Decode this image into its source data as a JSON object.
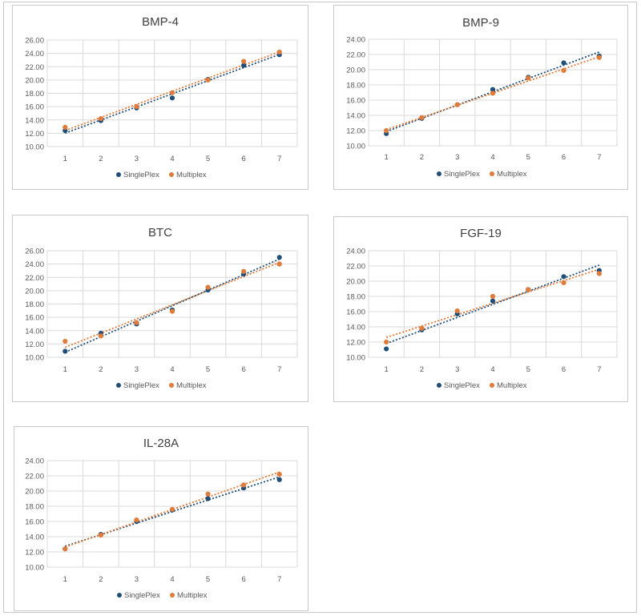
{
  "colors": {
    "singleplex": "#1f4e79",
    "multiplex": "#e07b39",
    "grid": "#d9d9d9"
  },
  "chart_data": [
    {
      "type": "scatter",
      "title": "BMP-4",
      "x": [
        1,
        2,
        3,
        4,
        5,
        6,
        7
      ],
      "ylim": [
        10,
        26
      ],
      "yticks": [
        "10.00",
        "12.00",
        "14.00",
        "16.00",
        "18.00",
        "20.00",
        "22.00",
        "24.00",
        "26.00"
      ],
      "xticks": [
        "1",
        "2",
        "3",
        "4",
        "5",
        "6",
        "7"
      ],
      "grid": true,
      "trendline": "linear, dotted",
      "legend_position": "bottom",
      "series": [
        {
          "name": "SinglePlex",
          "values": [
            12.4,
            13.9,
            15.8,
            17.3,
            20.1,
            22.2,
            23.8
          ]
        },
        {
          "name": "Multiplex",
          "values": [
            12.9,
            14.2,
            16.0,
            18.1,
            20.0,
            22.8,
            24.2
          ]
        }
      ]
    },
    {
      "type": "scatter",
      "title": "BMP-9",
      "x": [
        1,
        2,
        3,
        4,
        5,
        6,
        7
      ],
      "ylim": [
        10,
        24
      ],
      "yticks": [
        "10.00",
        "12.00",
        "14.00",
        "16.00",
        "18.00",
        "20.00",
        "22.00",
        "24.00"
      ],
      "xticks": [
        "1",
        "2",
        "3",
        "4",
        "5",
        "6",
        "7"
      ],
      "grid": true,
      "trendline": "linear, dotted",
      "legend_position": "bottom",
      "series": [
        {
          "name": "SinglePlex",
          "values": [
            11.6,
            13.6,
            15.4,
            17.4,
            19.0,
            20.9,
            21.8
          ]
        },
        {
          "name": "Multiplex",
          "values": [
            12.0,
            13.7,
            15.4,
            16.9,
            18.9,
            19.9,
            21.6
          ]
        }
      ]
    },
    {
      "type": "scatter",
      "title": "BTC",
      "x": [
        1,
        2,
        3,
        4,
        5,
        6,
        7
      ],
      "ylim": [
        10,
        26
      ],
      "yticks": [
        "10.00",
        "12.00",
        "14.00",
        "16.00",
        "18.00",
        "20.00",
        "22.00",
        "24.00",
        "26.00"
      ],
      "xticks": [
        "1",
        "2",
        "3",
        "4",
        "5",
        "6",
        "7"
      ],
      "grid": true,
      "trendline": "linear, dotted",
      "legend_position": "bottom",
      "series": [
        {
          "name": "SinglePlex",
          "values": [
            10.9,
            13.6,
            15.0,
            17.1,
            20.1,
            22.5,
            25.0
          ]
        },
        {
          "name": "Multiplex",
          "values": [
            12.4,
            13.2,
            15.2,
            16.9,
            20.5,
            22.9,
            24.0
          ]
        }
      ]
    },
    {
      "type": "scatter",
      "title": "FGF-19",
      "x": [
        1,
        2,
        3,
        4,
        5,
        6,
        7
      ],
      "ylim": [
        10,
        24
      ],
      "yticks": [
        "10.00",
        "12.00",
        "14.00",
        "16.00",
        "18.00",
        "20.00",
        "22.00",
        "24.00"
      ],
      "xticks": [
        "1",
        "2",
        "3",
        "4",
        "5",
        "6",
        "7"
      ],
      "grid": true,
      "trendline": "linear, dotted",
      "legend_position": "bottom",
      "series": [
        {
          "name": "SinglePlex",
          "values": [
            11.1,
            13.6,
            15.7,
            17.4,
            18.9,
            20.6,
            21.4
          ]
        },
        {
          "name": "Multiplex",
          "values": [
            12.0,
            13.8,
            16.1,
            18.0,
            18.9,
            19.8,
            21.0
          ]
        }
      ]
    },
    {
      "type": "scatter",
      "title": "IL-28A",
      "x": [
        1,
        2,
        3,
        4,
        5,
        6,
        7
      ],
      "ylim": [
        10,
        24
      ],
      "yticks": [
        "10.00",
        "12.00",
        "14.00",
        "16.00",
        "18.00",
        "20.00",
        "22.00",
        "24.00"
      ],
      "xticks": [
        "1",
        "2",
        "3",
        "4",
        "5",
        "6",
        "7"
      ],
      "grid": true,
      "trendline": "linear, dotted",
      "legend_position": "bottom",
      "series": [
        {
          "name": "SinglePlex",
          "values": [
            12.4,
            14.3,
            16.0,
            17.5,
            19.0,
            20.4,
            21.5
          ]
        },
        {
          "name": "Multiplex",
          "values": [
            12.4,
            14.2,
            16.2,
            17.6,
            19.6,
            20.8,
            22.2
          ]
        }
      ]
    }
  ]
}
